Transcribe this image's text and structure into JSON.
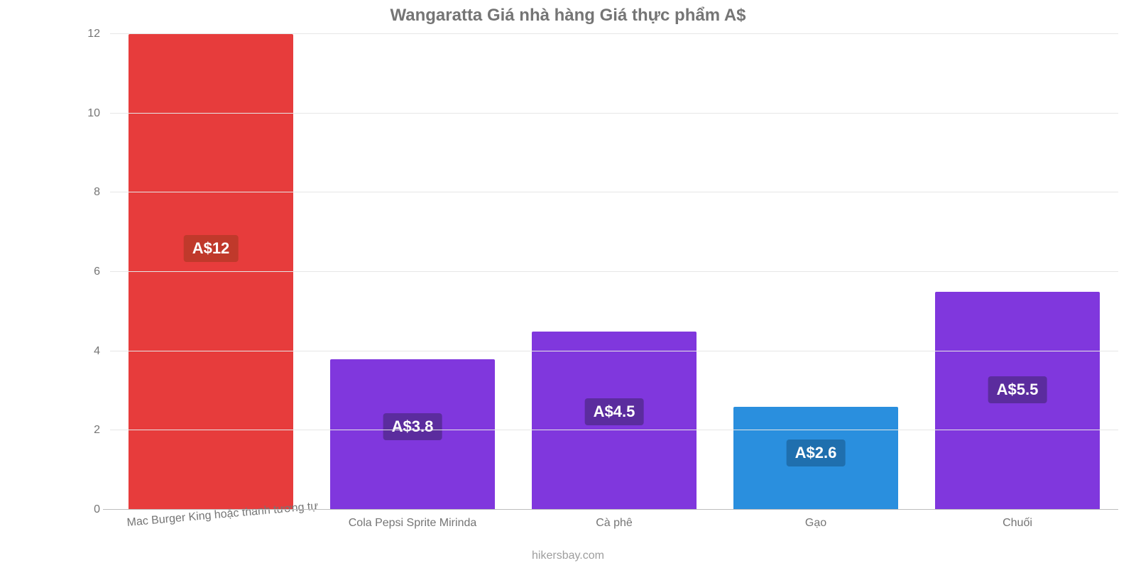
{
  "chart": {
    "type": "bar",
    "title": "Wangaratta Giá nhà hàng Giá thực phẩm A$",
    "title_fontsize": 24,
    "title_color": "#757575",
    "background_color": "#ffffff",
    "grid_color": "#e6e6e6",
    "axis_color": "#bdbdbd",
    "tick_label_color": "#757575",
    "tick_label_fontsize": 16,
    "ylim": [
      0,
      12
    ],
    "ytick_step": 2,
    "yticks": [
      0,
      2,
      4,
      6,
      8,
      10,
      12
    ],
    "bar_width": 0.82,
    "bar_border_radius": 2,
    "categories": [
      "Mac Burger King hoặc thanh tương tự",
      "Cola Pepsi Sprite Mirinda",
      "Cà phê",
      "Gạo",
      "Chuối"
    ],
    "values": [
      12,
      3.8,
      4.5,
      2.6,
      5.5
    ],
    "value_labels": [
      "A$12",
      "A$3.8",
      "A$4.5",
      "A$2.6",
      "A$5.5"
    ],
    "bar_colors": [
      "#e73c3c",
      "#8037dd",
      "#8037dd",
      "#2a8fde",
      "#8037dd"
    ],
    "badge_colors": [
      "#c0392b",
      "#5b2c9e",
      "#5b2c9e",
      "#1f6fae",
      "#5b2c9e"
    ],
    "badge_text_color": "#ffffff",
    "badge_fontsize": 22,
    "x_label_rotate_first": -5,
    "x_label_color": "#757575",
    "x_label_fontsize": 16
  },
  "attribution": "hikersbay.com",
  "attribution_color": "#9e9e9e",
  "attribution_fontsize": 16
}
